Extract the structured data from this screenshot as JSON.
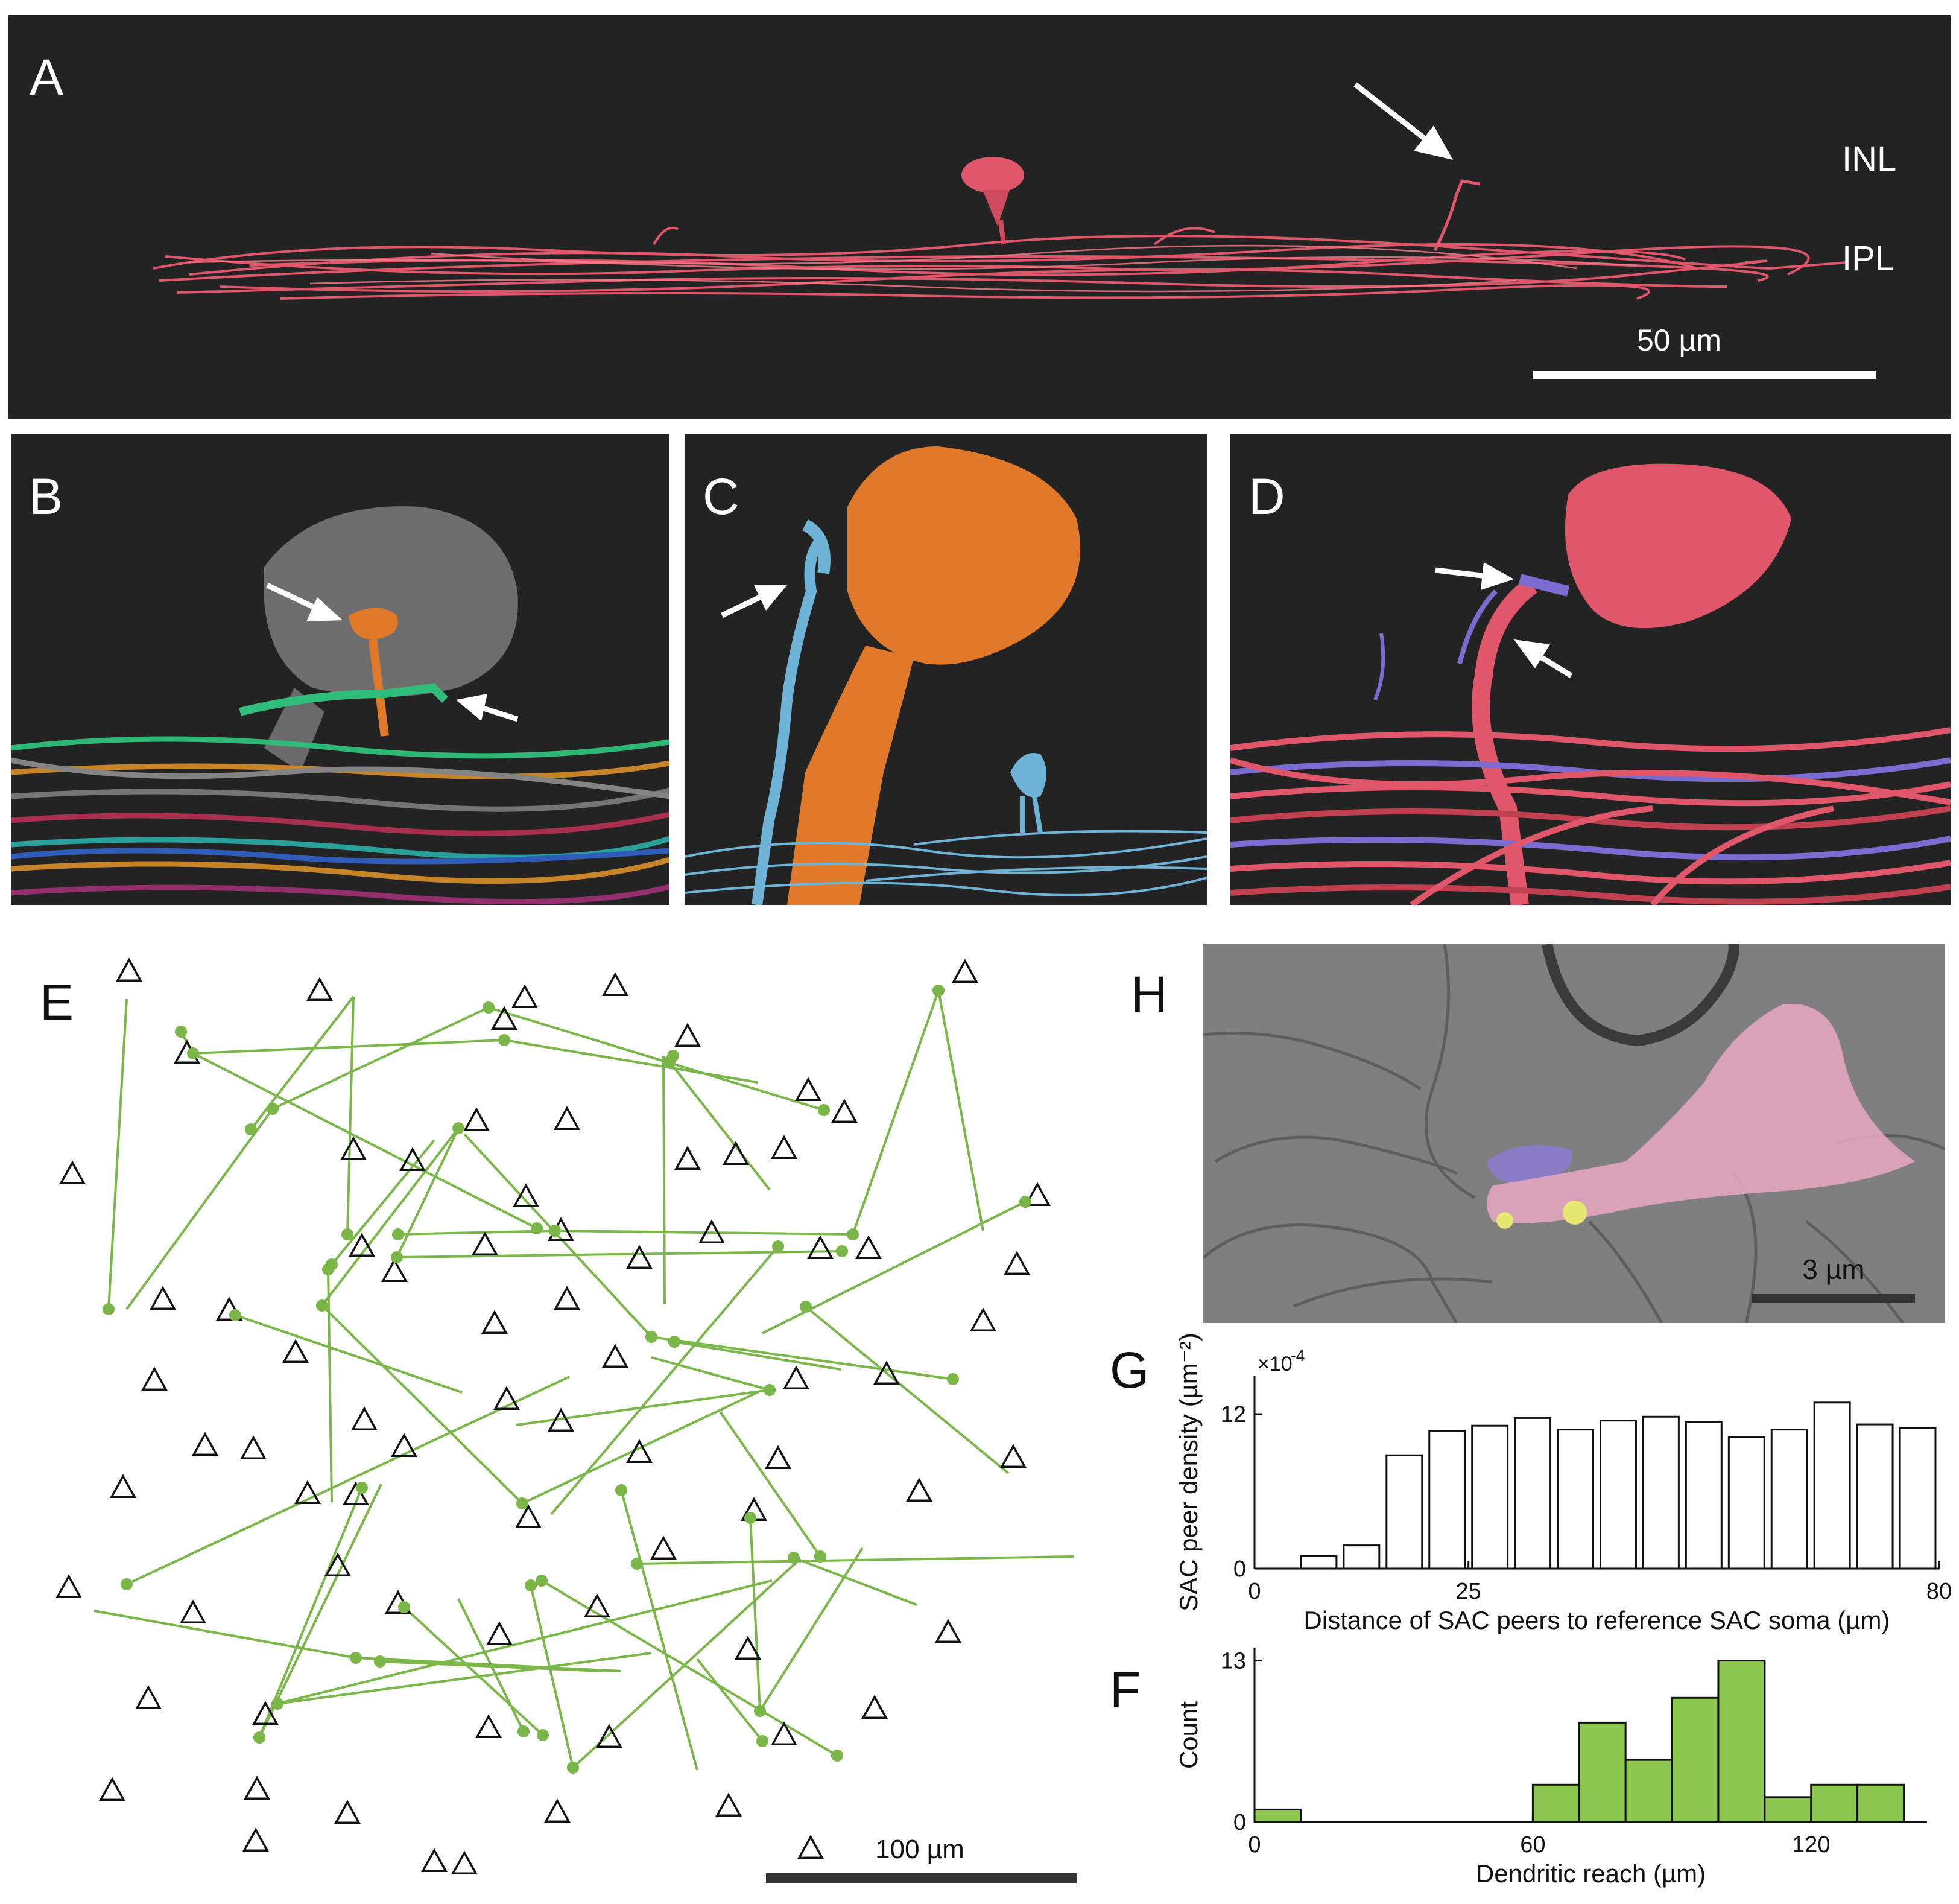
{
  "panels": {
    "a": {
      "letter": "A",
      "label_inl": "INL",
      "label_ipl": "IPL",
      "scale_label": "50 µm"
    },
    "b": {
      "letter": "B"
    },
    "c": {
      "letter": "C"
    },
    "d": {
      "letter": "D"
    },
    "e": {
      "letter": "E",
      "scale_label": "100 µm"
    },
    "h": {
      "letter": "H",
      "scale_label": "3 µm"
    },
    "g": {
      "letter": "G"
    },
    "f": {
      "letter": "F"
    }
  },
  "colors": {
    "background_dark": "#232323",
    "sac_red": "#e0566a",
    "sac_orange": "#e07a2a",
    "sac_blue": "#6fb4d6",
    "link_green": "#7ab648",
    "bar_green": "#8cc850",
    "em_pink": "#e7a7c0",
    "em_purple": "#8b7ad0",
    "em_yellow": "#e6e872"
  },
  "chart_data": [
    {
      "type": "bar",
      "panel": "G",
      "ylabel": "SAC peer density (µm⁻²)",
      "yunit_prefix": "×10",
      "yunit_exp": "-4",
      "xlabel": "Distance of SAC peers to reference SAC soma (µm)",
      "xlim": [
        0,
        80
      ],
      "ylim": [
        0,
        15
      ],
      "xticks": [
        0,
        25,
        80
      ],
      "yticks": [
        0,
        12
      ],
      "bin_width": 5,
      "x": [
        2.5,
        7.5,
        12.5,
        17.5,
        22.5,
        27.5,
        32.5,
        37.5,
        42.5,
        47.5,
        52.5,
        57.5,
        62.5,
        67.5,
        72.5,
        77.5
      ],
      "values": [
        0,
        1.0,
        1.8,
        8.8,
        10.7,
        11.1,
        11.7,
        10.8,
        11.5,
        11.8,
        11.4,
        10.2,
        10.8,
        12.9,
        11.2,
        10.9
      ]
    },
    {
      "type": "bar",
      "panel": "F",
      "ylabel": "Count",
      "xlabel": "Dendritic reach (µm)",
      "xlim": [
        0,
        145
      ],
      "ylim": [
        0,
        14
      ],
      "xticks": [
        0,
        60,
        120
      ],
      "yticks": [
        0,
        13
      ],
      "bin_width": 10,
      "x": [
        5,
        15,
        25,
        35,
        45,
        55,
        65,
        75,
        85,
        95,
        105,
        115,
        125,
        135
      ],
      "values": [
        1,
        0,
        0,
        0,
        0,
        0,
        3,
        8,
        5,
        10,
        13,
        2,
        3,
        3
      ]
    }
  ]
}
